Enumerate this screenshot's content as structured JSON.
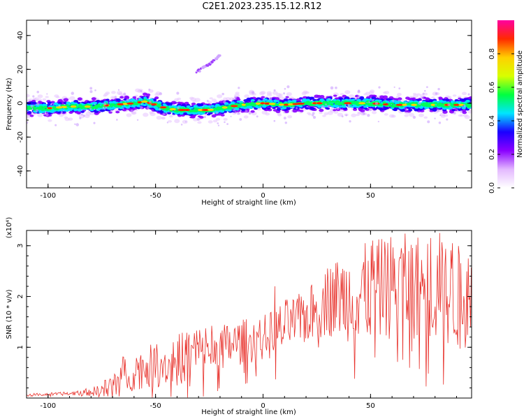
{
  "title": "C2E1.2023.235.15.12.R12",
  "colors": {
    "snr_line": "#e8322c",
    "frame": "#000000"
  },
  "chart_data": [
    {
      "type": "heatmap",
      "title": "",
      "xlabel": "Height of straight line (km)",
      "ylabel": "Frequency (Hz)",
      "xlim": [
        -110,
        97
      ],
      "ylim": [
        -50,
        49
      ],
      "xticks": [
        "-100",
        "-50",
        "0",
        "50"
      ],
      "xtick_values": [
        -100,
        -50,
        0,
        50
      ],
      "yticks": [
        "40",
        "20",
        "0",
        "-20",
        "-40"
      ],
      "ytick_values": [
        40,
        20,
        0,
        -20,
        -40
      ],
      "colorbar": {
        "label": "Normalized spectral amplitude",
        "range": [
          0,
          1
        ],
        "ticks": [
          "0.0",
          "0.2",
          "0.4",
          "0.6",
          "0.8"
        ],
        "tick_values": [
          0.0,
          0.2,
          0.4,
          0.6,
          0.8
        ],
        "colors": [
          "#ffffff",
          "#e3b8ff",
          "#8a00ff",
          "#1a00ff",
          "#00e5ff",
          "#00ff40",
          "#d8ff00",
          "#ffd000",
          "#ff2a00",
          "#ff00a0"
        ]
      },
      "center_frequency": {
        "x": [
          -108,
          -100,
          -90,
          -80,
          -70,
          -60,
          -55,
          -50,
          -45,
          -40,
          -35,
          -30,
          -25,
          -20,
          -10,
          0,
          10,
          20,
          30,
          40,
          50,
          60,
          70,
          80,
          90,
          97
        ],
        "y": [
          -3,
          -3,
          -2,
          -2,
          -1,
          0,
          1,
          -1,
          -3,
          -4,
          -4,
          -4,
          -4,
          -3,
          -1,
          0,
          -1,
          0,
          0,
          0,
          0,
          -1,
          -1,
          -1,
          -1,
          -1
        ]
      },
      "secondary_streak": {
        "x": [
          -31,
          -20
        ],
        "y": [
          18,
          28
        ]
      }
    },
    {
      "type": "line",
      "title": "",
      "xlabel": "Height of straight line (km)",
      "ylabel": "SNR (10 * v/v)",
      "yscale_label": "(x10⁴)",
      "xlim": [
        -110,
        97
      ],
      "ylim": [
        0,
        3.3
      ],
      "xticks": [
        "-100",
        "-50",
        "0",
        "50"
      ],
      "xtick_values": [
        -100,
        -50,
        0,
        50
      ],
      "yticks": [
        "1",
        "2",
        "3"
      ],
      "ytick_values": [
        1,
        2,
        3
      ],
      "series": [
        {
          "envelope_x": [
            -110,
            -95,
            -88,
            -80,
            -75,
            -70,
            -65,
            -60,
            -55,
            -50,
            -45,
            -40,
            -35,
            -30,
            -25,
            -20,
            -15,
            -10,
            -5,
            0,
            5,
            10,
            15,
            20,
            25,
            30,
            35,
            40,
            45,
            50,
            55,
            60,
            65,
            70,
            75,
            80,
            85,
            90,
            97
          ],
          "envelope_y": [
            0.06,
            0.08,
            0.1,
            0.12,
            0.15,
            0.25,
            0.45,
            0.55,
            0.6,
            0.65,
            0.7,
            0.75,
            0.85,
            0.95,
            1.0,
            1.0,
            1.05,
            1.1,
            1.15,
            1.2,
            1.25,
            1.45,
            1.5,
            1.6,
            1.75,
            1.9,
            2.0,
            2.0,
            2.05,
            2.1,
            2.15,
            2.2,
            2.2,
            2.2,
            2.2,
            2.1,
            2.05,
            2.0,
            1.95
          ],
          "noise_y": [
            0.03,
            0.03,
            0.05,
            0.08,
            0.15,
            0.3,
            0.4,
            0.4,
            0.4,
            0.45,
            0.45,
            0.5,
            0.55,
            0.55,
            0.5,
            0.45,
            0.45,
            0.45,
            0.45,
            0.45,
            0.5,
            0.5,
            0.5,
            0.55,
            0.6,
            0.7,
            0.8,
            0.9,
            0.95,
            1.0,
            1.0,
            1.05,
            1.05,
            1.05,
            1.05,
            1.05,
            1.05,
            1.05,
            1.0
          ],
          "peaks": [
            {
              "x": 5.5,
              "y": 2.2
            },
            {
              "x": 30,
              "y": 2.55
            },
            {
              "x": 51,
              "y": 3.1
            },
            {
              "x": 57,
              "y": 2.8
            },
            {
              "x": 64,
              "y": 2.75
            },
            {
              "x": 78,
              "y": 3.15
            },
            {
              "x": 82,
              "y": 3.25
            },
            {
              "x": 88,
              "y": 3.05
            }
          ]
        }
      ]
    }
  ]
}
